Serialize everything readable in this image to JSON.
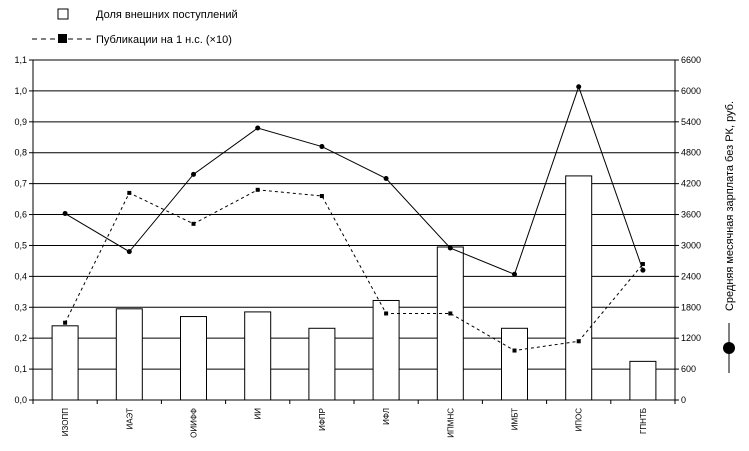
{
  "chart_data": {
    "type": "bar",
    "categories": [
      "ИЗОПП",
      "ИАЭТ",
      "ОИИФФ",
      "ИИ",
      "ИФПР",
      "ИФЛ",
      "ИПМНС",
      "ИМБТ",
      "ИПОС",
      "ГПНТБ"
    ],
    "series": [
      {
        "name": "Доля внешних поступлений",
        "type": "bar",
        "axis": "left",
        "values": [
          0.24,
          0.295,
          0.27,
          0.285,
          0.232,
          0.322,
          0.495,
          0.232,
          0.725,
          0.125
        ]
      },
      {
        "name": "Публикации на 1 н.с. (×10)",
        "type": "line",
        "style": "dashed",
        "marker": "square",
        "axis": "left",
        "values": [
          0.25,
          0.67,
          0.57,
          0.68,
          0.66,
          0.28,
          0.28,
          0.16,
          0.19,
          0.44
        ]
      },
      {
        "name": "Средняя месячная зарплата без РК, руб.",
        "type": "line",
        "style": "solid",
        "marker": "circle",
        "axis": "right",
        "values": [
          3620,
          2880,
          4380,
          5280,
          4920,
          4300,
          2950,
          2440,
          6080,
          2520
        ]
      }
    ],
    "y_left": {
      "ylim": [
        0,
        1.1
      ],
      "ticks": [
        "0,0",
        "0,1",
        "0,2",
        "0,3",
        "0,4",
        "0,5",
        "0,6",
        "0,7",
        "0,8",
        "0,9",
        "1,0",
        "1,1"
      ]
    },
    "y_right": {
      "ylim": [
        0,
        6600
      ],
      "ticks": [
        "0",
        "600",
        "1200",
        "1800",
        "2400",
        "3000",
        "3600",
        "4200",
        "4800",
        "5400",
        "6000",
        "6600"
      ],
      "label": "Средняя месячная зарплата без РК, руб."
    },
    "grid": true,
    "legend": {
      "position": "top-left",
      "entries": [
        "Доля внешних поступлений",
        "Публикации на 1 н.с. (×10)"
      ]
    },
    "colors": {
      "bar_fill": "#ffffff",
      "line": "#000000",
      "grid": "#000000"
    }
  }
}
